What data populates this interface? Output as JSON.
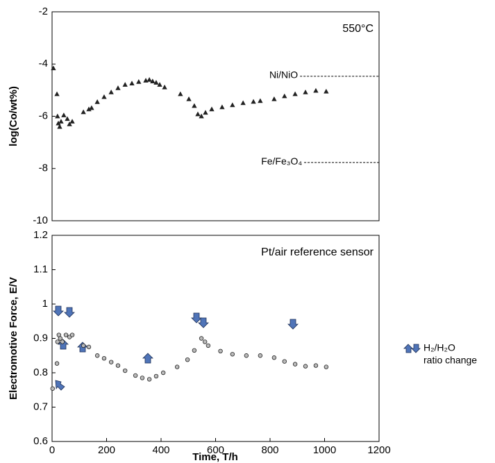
{
  "chart_data": [
    {
      "type": "scatter",
      "marker": "triangle",
      "color": "#222222",
      "ylabel": "log(Co/wt%)",
      "annotation": "550°C",
      "x": [
        5,
        18,
        20,
        23,
        28,
        33,
        43,
        56,
        64,
        74,
        115,
        135,
        145,
        166,
        191,
        217,
        242,
        268,
        293,
        318,
        344,
        357,
        369,
        382,
        395,
        413,
        471,
        502,
        522,
        535,
        548,
        563,
        586,
        624,
        662,
        701,
        739,
        764,
        815,
        853,
        892,
        930,
        968,
        1006
      ],
      "values": [
        -4.16,
        -5.15,
        -6.0,
        -6.27,
        -6.4,
        -6.2,
        -5.96,
        -6.1,
        -6.3,
        -6.2,
        -5.84,
        -5.73,
        -5.68,
        -5.45,
        -5.26,
        -5.08,
        -4.92,
        -4.79,
        -4.74,
        -4.68,
        -4.63,
        -4.6,
        -4.66,
        -4.71,
        -4.79,
        -4.89,
        -5.15,
        -5.34,
        -5.6,
        -5.92,
        -6.0,
        -5.86,
        -5.73,
        -5.65,
        -5.57,
        -5.49,
        -5.44,
        -5.41,
        -5.34,
        -5.23,
        -5.15,
        -5.08,
        -5.02,
        -5.05
      ],
      "reference_lines": [
        {
          "label": "Ni/NiO",
          "value": -4.47,
          "x_range": [
            910,
            1200
          ]
        },
        {
          "label": "Fe/Fe₃O₄",
          "value": -7.77,
          "x_range": [
            925,
            1200
          ]
        }
      ],
      "xlim": [
        0,
        1200
      ],
      "ylim": [
        -10,
        -2
      ],
      "yticks": [
        -2,
        -4,
        -6,
        -8,
        -10
      ]
    },
    {
      "type": "scatter",
      "marker": "circle",
      "color": "#222222",
      "xlabel": "Time, T/h",
      "ylabel": "Electromotive Force, E/V",
      "annotation": "Pt/air reference sensor",
      "arrow_legend": [
        "H₂/H₂O",
        "ratio change"
      ],
      "x": [
        2,
        18,
        20,
        25,
        30,
        38,
        51,
        64,
        74,
        115,
        135,
        166,
        191,
        217,
        242,
        268,
        306,
        331,
        357,
        382,
        408,
        459,
        497,
        522,
        548,
        561,
        573,
        618,
        662,
        713,
        764,
        815,
        853,
        892,
        930,
        968,
        1006
      ],
      "values": [
        0.754,
        0.827,
        0.89,
        0.91,
        0.9,
        0.89,
        0.91,
        0.904,
        0.91,
        0.879,
        0.875,
        0.85,
        0.842,
        0.831,
        0.821,
        0.806,
        0.792,
        0.785,
        0.781,
        0.79,
        0.8,
        0.817,
        0.838,
        0.865,
        0.9,
        0.89,
        0.879,
        0.863,
        0.854,
        0.85,
        0.85,
        0.844,
        0.833,
        0.825,
        0.819,
        0.821,
        0.817
      ],
      "xlim": [
        0,
        1200
      ],
      "xticks": [
        0,
        200,
        400,
        600,
        800,
        1000,
        1200
      ],
      "ylim": [
        0.6,
        1.2
      ],
      "yticks": [
        0.6,
        0.7,
        0.8,
        0.9,
        1,
        1.1,
        1.2
      ]
    }
  ]
}
